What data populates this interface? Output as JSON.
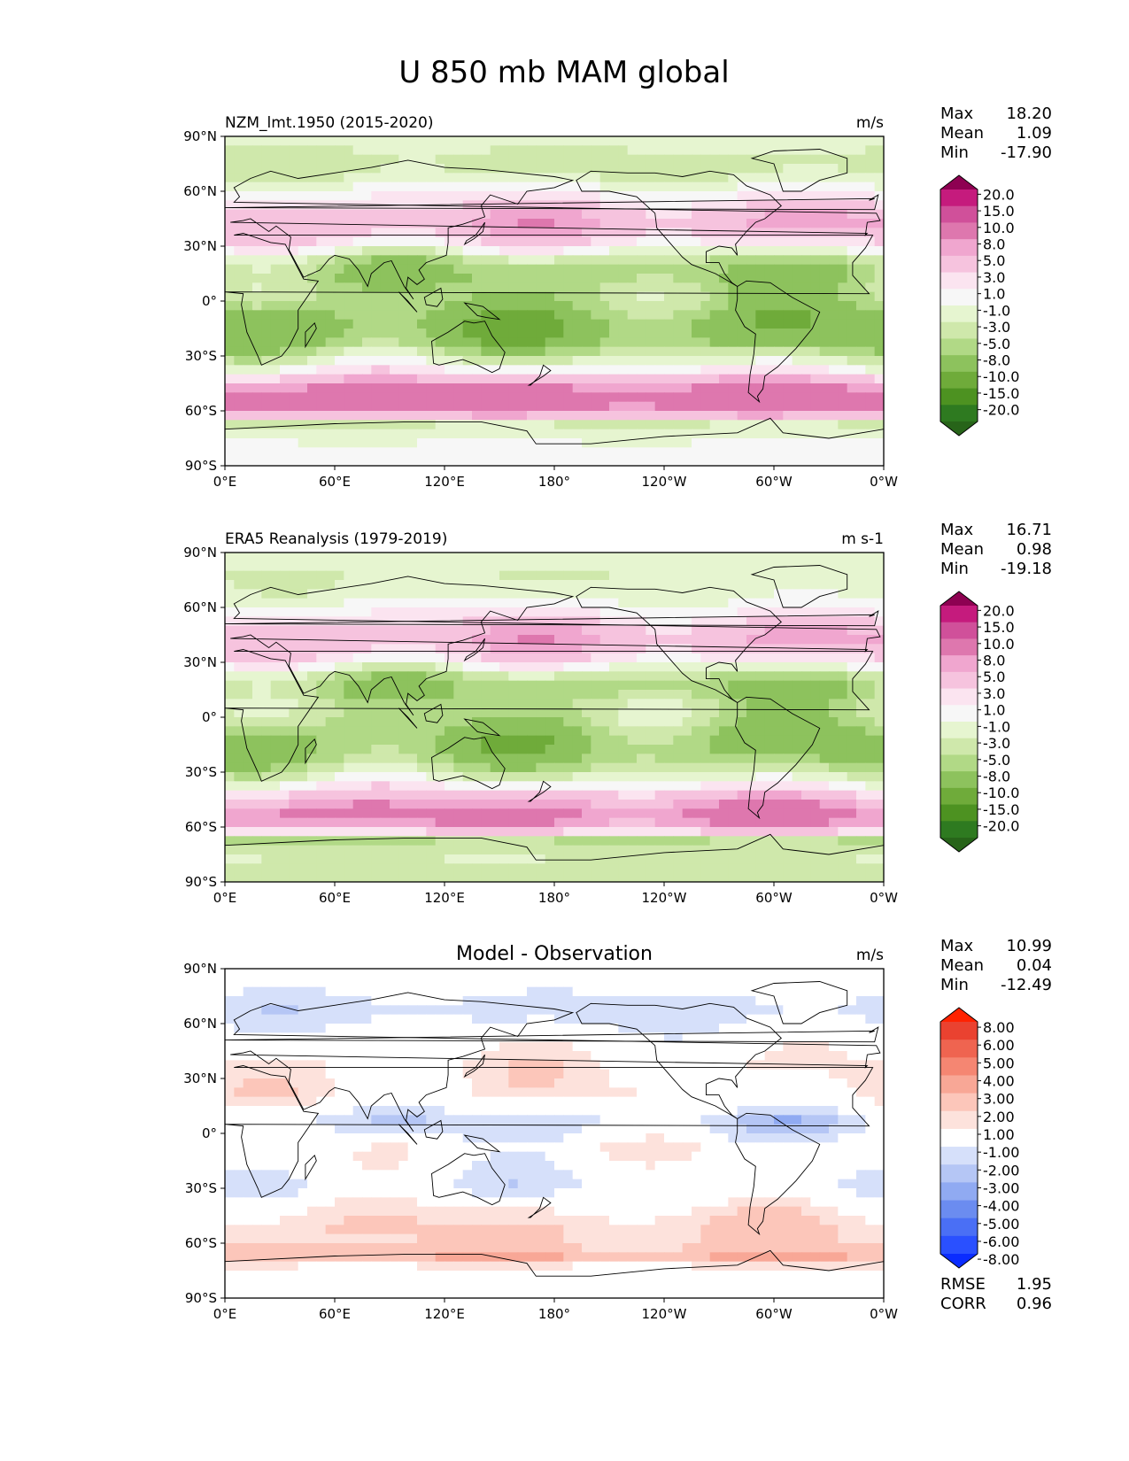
{
  "figure": {
    "title": "U 850 mb MAM global"
  },
  "colors": {
    "full_field": [
      "#276419",
      "#2e7a20",
      "#4d9221",
      "#6fab3a",
      "#8dc25d",
      "#b1d986",
      "#cfe8ab",
      "#e6f5d0",
      "#f7f7f7",
      "#fbe4f0",
      "#f6c3de",
      "#f0a6cf",
      "#de77ae",
      "#d0509a",
      "#c51b7d",
      "#8e0152"
    ],
    "difference": [
      "#0a2cff",
      "#2a50ff",
      "#4a6ff5",
      "#6b8cf0",
      "#90aaf2",
      "#b5c6f5",
      "#d6e0fa",
      "#ffffff",
      "#fde2dc",
      "#fcc6ba",
      "#f8a796",
      "#f58672",
      "#ef6450",
      "#ea4230",
      "#ff2200"
    ],
    "coast": "#000000"
  },
  "chart_data": [
    {
      "type": "heatmap",
      "panel": "model",
      "title_left": "NZM_lmt.1950 (2015-2020)",
      "title_center": "",
      "units": "m/s",
      "stats": [
        {
          "label": "Max",
          "value": "18.20"
        },
        {
          "label": "Mean",
          "value": "1.09"
        },
        {
          "label": "Min",
          "value": "-17.90"
        }
      ],
      "x_ticks": [
        "0°E",
        "60°E",
        "120°E",
        "180°",
        "120°W",
        "60°W",
        "0°W"
      ],
      "y_ticks": [
        "90°N",
        "60°N",
        "30°N",
        "0°",
        "30°S",
        "60°S",
        "90°S"
      ],
      "xlim": [
        0,
        360
      ],
      "ylim": [
        -90,
        90
      ],
      "colorbar_levels": [
        "20.0",
        "15.0",
        "10.0",
        "8.0",
        "5.0",
        "3.0",
        "1.0",
        "-1.0",
        "-3.0",
        "-5.0",
        "-8.0",
        "-10.0",
        "-15.0",
        "-20.0"
      ],
      "field_description": "zonal wind at 850 mb, March-May mean",
      "zonal_profile_lat": [
        -90,
        -75,
        -68,
        -60,
        -52,
        -45,
        -38,
        -30,
        -22,
        -15,
        -8,
        0,
        8,
        15,
        22,
        30,
        38,
        45,
        52,
        60,
        68,
        75,
        90
      ],
      "zonal_profile_u": [
        2,
        1,
        -2,
        11,
        13,
        9,
        3,
        -2,
        -6,
        -7,
        -6,
        -4,
        -4,
        -5,
        -3,
        3,
        7,
        8,
        5,
        2,
        -1,
        -2,
        0
      ]
    },
    {
      "type": "heatmap",
      "panel": "observation",
      "title_left": "ERA5 Reanalysis (1979-2019)",
      "title_center": "",
      "units": "m s-1",
      "stats": [
        {
          "label": "Max",
          "value": "16.71"
        },
        {
          "label": "Mean",
          "value": "0.98"
        },
        {
          "label": "Min",
          "value": "-19.18"
        }
      ],
      "x_ticks": [
        "0°E",
        "60°E",
        "120°E",
        "180°",
        "120°W",
        "60°W",
        "0°W"
      ],
      "y_ticks": [
        "90°N",
        "60°N",
        "30°N",
        "0°",
        "30°S",
        "60°S",
        "90°S"
      ],
      "xlim": [
        0,
        360
      ],
      "ylim": [
        -90,
        90
      ],
      "colorbar_levels": [
        "20.0",
        "15.0",
        "10.0",
        "8.0",
        "5.0",
        "3.0",
        "1.0",
        "-1.0",
        "-3.0",
        "-5.0",
        "-8.0",
        "-10.0",
        "-15.0",
        "-20.0"
      ],
      "field_description": "zonal wind at 850 mb, March-May mean",
      "zonal_profile_lat": [
        -90,
        -75,
        -68,
        -60,
        -52,
        -45,
        -38,
        -30,
        -22,
        -15,
        -8,
        0,
        8,
        15,
        22,
        30,
        38,
        45,
        52,
        60,
        68,
        75,
        90
      ],
      "zonal_profile_u": [
        -3,
        -1,
        -4,
        9,
        11,
        8,
        3,
        -2,
        -5,
        -6,
        -5,
        -3,
        -3,
        -5,
        -3,
        3,
        7,
        8,
        5,
        2,
        0,
        -1,
        0
      ]
    },
    {
      "type": "heatmap",
      "panel": "difference",
      "title_left": "",
      "title_center": "Model - Observation",
      "units": "m/s",
      "stats": [
        {
          "label": "Max",
          "value": "10.99"
        },
        {
          "label": "Mean",
          "value": "0.04"
        },
        {
          "label": "Min",
          "value": "-12.49"
        }
      ],
      "extra_stats": [
        {
          "label": "RMSE",
          "value": "1.95"
        },
        {
          "label": "CORR",
          "value": "0.96"
        }
      ],
      "x_ticks": [
        "0°E",
        "60°E",
        "120°E",
        "180°",
        "120°W",
        "60°W",
        "0°W"
      ],
      "y_ticks": [
        "90°N",
        "60°N",
        "30°N",
        "0°",
        "30°S",
        "60°S",
        "90°S"
      ],
      "xlim": [
        0,
        360
      ],
      "ylim": [
        -90,
        90
      ],
      "colorbar_levels": [
        "8.00",
        "6.00",
        "5.00",
        "4.00",
        "3.00",
        "2.00",
        "1.00",
        "-1.00",
        "-2.00",
        "-3.00",
        "-4.00",
        "-5.00",
        "-6.00",
        "-8.00"
      ],
      "field_description": "model minus observation difference",
      "zonal_profile_lat": [
        -90,
        -75,
        -68,
        -60,
        -52,
        -45,
        -38,
        -30,
        -22,
        -15,
        -8,
        0,
        8,
        15,
        22,
        30,
        38,
        45,
        52,
        60,
        68,
        75,
        90
      ],
      "zonal_profile_u": [
        0,
        0,
        3,
        2,
        2,
        1.5,
        0.5,
        -1,
        -0.5,
        0,
        0.5,
        -1,
        -1.5,
        0,
        1,
        1,
        1,
        0.5,
        0,
        -1,
        -1.5,
        -1,
        0
      ]
    }
  ]
}
